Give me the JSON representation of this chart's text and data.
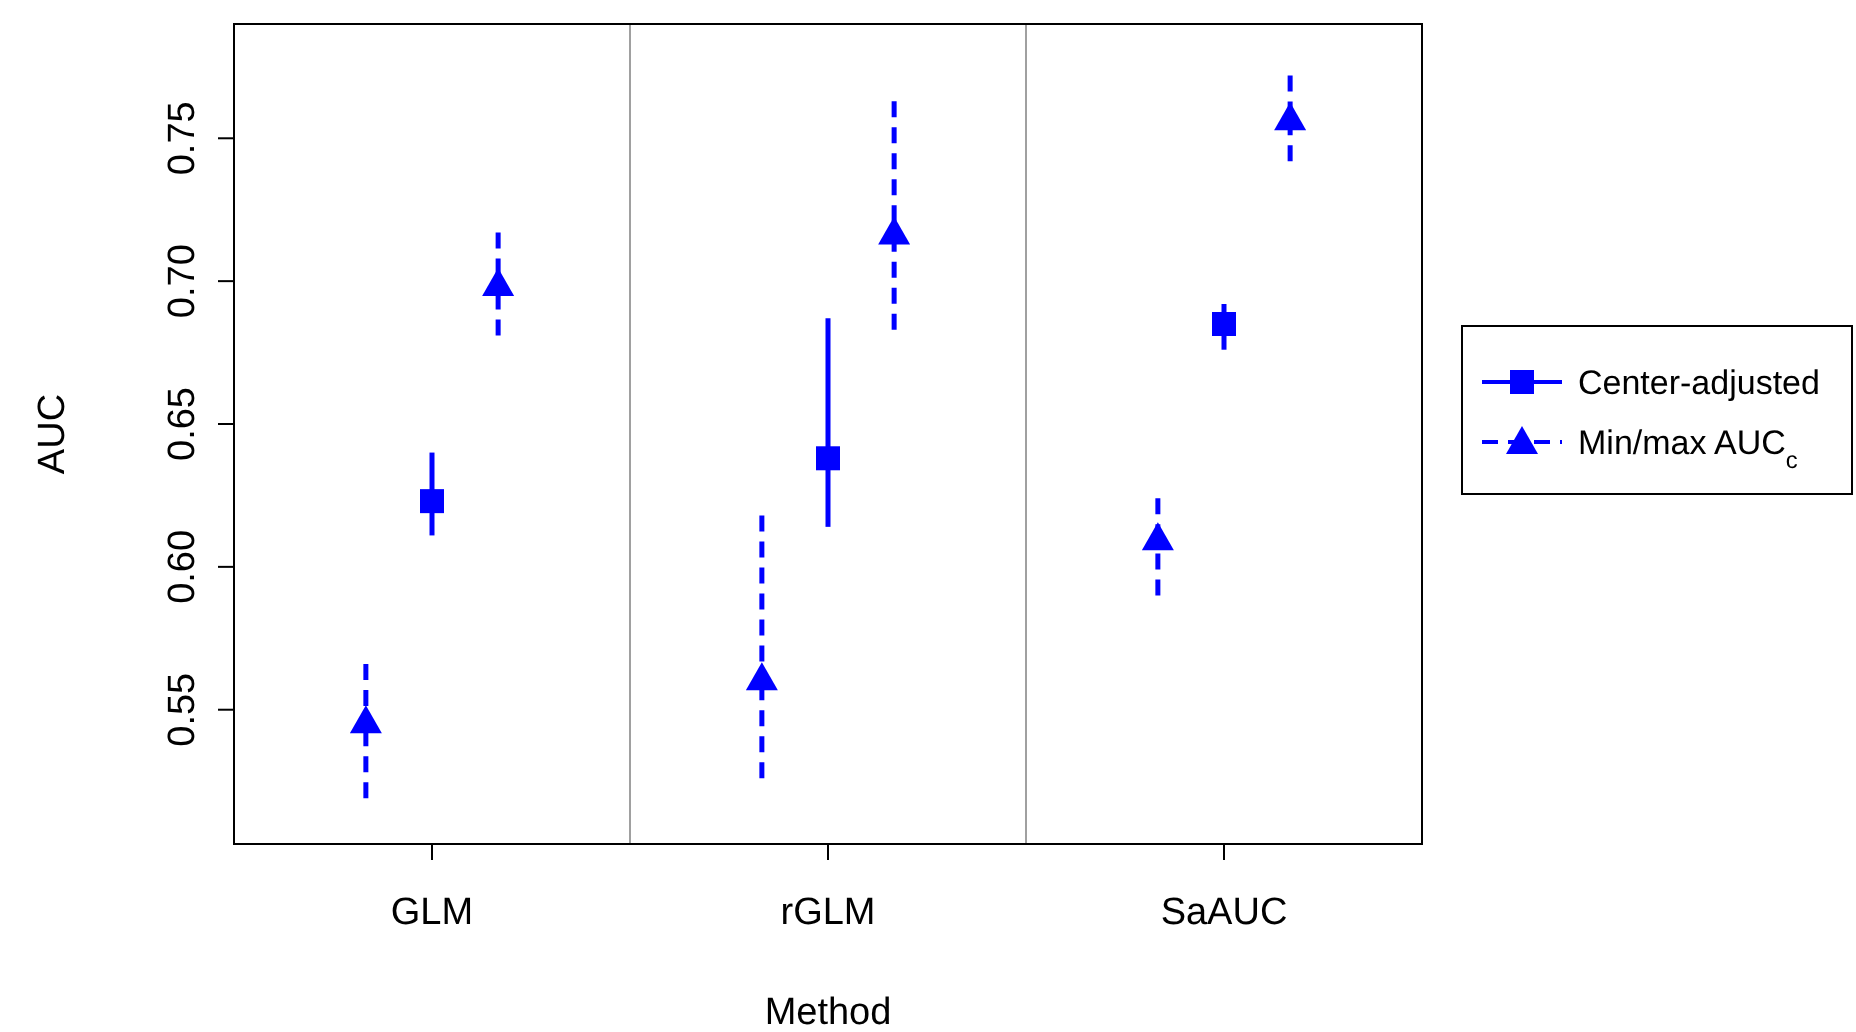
{
  "chart_data": {
    "type": "scatter",
    "xlabel": "Method",
    "ylabel": "AUC",
    "categories": [
      "GLM",
      "rGLM",
      "SaAUC"
    ],
    "series": [
      {
        "name": "Center-adjusted",
        "color": "#0000ff",
        "marker": "square",
        "line_style": "solid",
        "values": [
          0.623,
          0.638,
          0.685
        ],
        "errors": [
          [
            0.611,
            0.64
          ],
          [
            0.614,
            0.687
          ],
          [
            0.676,
            0.692
          ]
        ]
      },
      {
        "name": "Min/max AUC$_{c}$",
        "color": "#0000ff",
        "marker": "triangle",
        "line_style": "dashed",
        "x": [
          "GLM",
          "GLM",
          "rGLM",
          "rGLM",
          "SaAUC",
          "SaAUC"
        ],
        "values": [
          0.546,
          0.699,
          0.561,
          0.717,
          0.61,
          0.757
        ],
        "errors": [
          [
            0.519,
            0.566
          ],
          [
            0.681,
            0.717
          ],
          [
            0.526,
            0.618
          ],
          [
            0.683,
            0.763
          ],
          [
            0.59,
            0.624
          ],
          [
            0.742,
            0.772
          ]
        ]
      }
    ],
    "ylim": [
      0.503,
      0.79
    ],
    "yticks": [
      {
        "value": 0.55,
        "label": "0.55"
      },
      {
        "value": 0.6,
        "label": "0.60"
      },
      {
        "value": 0.65,
        "label": "0.65"
      },
      {
        "value": 0.7,
        "label": "0.70"
      },
      {
        "value": 0.75,
        "label": "0.75"
      }
    ],
    "legend": "right"
  }
}
